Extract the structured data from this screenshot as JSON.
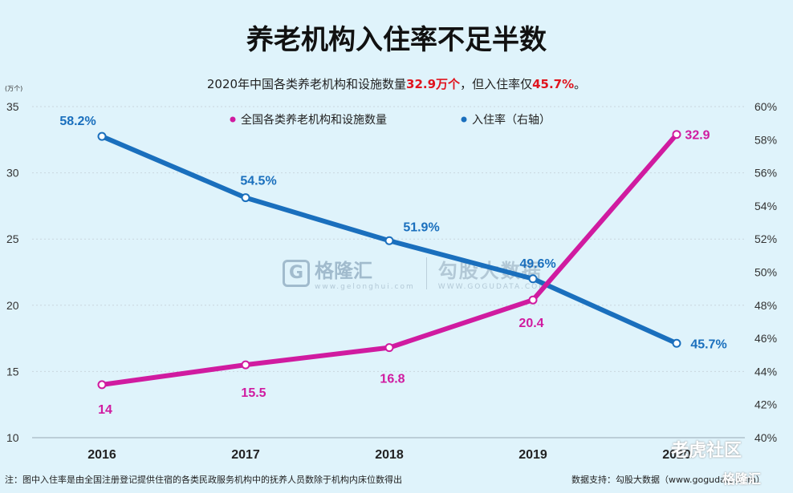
{
  "title": "养老机构入住率不足半数",
  "subtitle": {
    "prefix": "2020年中国各类养老机构和设施数量",
    "count": "32.9万个",
    "middle": "，但入住率仅",
    "rate": "45.7%",
    "suffix": "。"
  },
  "note": "注：图中入住率是由全国注册登记提供住宿的各类民政服务机构中的抚养人员数除于机构内床位数得出",
  "source": "数据支持：勾股大数据（www.gogudata.com）",
  "watermark": {
    "logo_letter": "G",
    "brand1": "格隆汇",
    "brand1_url": "www.gelonghui.com",
    "brand2": "勾股大数据",
    "brand2_url": "WWW.GOGUDATA.COM"
  },
  "corner_watermark": "老虎社区",
  "corner_watermark2": "格隆汇",
  "colors": {
    "facilities": "#d01ba0",
    "rate": "#1a6fbd",
    "background": "#dff3fb",
    "highlight": "#e0141e"
  },
  "chart_data": {
    "type": "line",
    "categories": [
      "2016",
      "2017",
      "2018",
      "2019",
      "2020"
    ],
    "y_left": {
      "unit_label": "(万个)",
      "ticks": [
        "35",
        "30",
        "25",
        "20",
        "15",
        "10"
      ],
      "range": [
        10,
        35
      ]
    },
    "y_right": {
      "ticks": [
        "60%",
        "58%",
        "56%",
        "54%",
        "52%",
        "50%",
        "48%",
        "46%",
        "44%",
        "42%",
        "40%"
      ],
      "range": [
        40,
        60
      ]
    },
    "series": [
      {
        "name": "全国各类养老机构和设施数量",
        "axis": "left",
        "values": [
          14,
          15.5,
          16.8,
          20.4,
          32.9
        ],
        "labels": [
          "14",
          "15.5",
          "16.8",
          "20.4",
          "32.9"
        ]
      },
      {
        "name": "入住率（右轴）",
        "axis": "right",
        "values": [
          58.2,
          54.5,
          51.9,
          49.6,
          45.7
        ],
        "labels": [
          "58.2%",
          "54.5%",
          "51.9%",
          "49.6%",
          "45.7%"
        ]
      }
    ]
  }
}
